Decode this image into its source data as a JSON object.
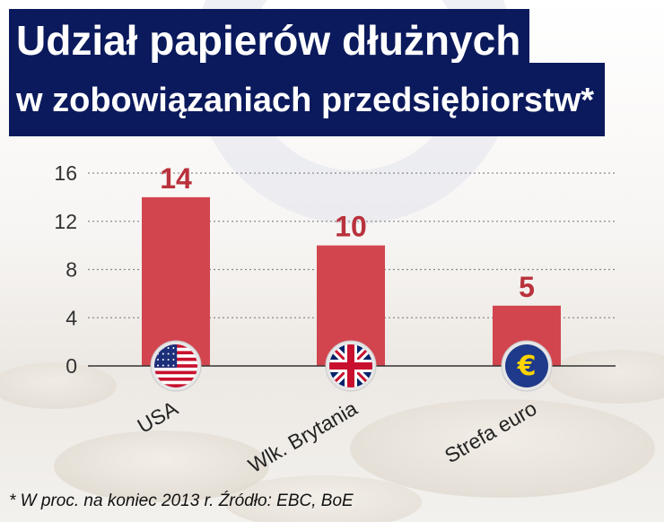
{
  "title": {
    "line1": "Udział papierów dłużnych",
    "line2": "w zobowiązaniach przedsiębiorstw*"
  },
  "footnote": "* W proc. na koniec 2013 r. Źródło: EBC, BoE",
  "colors": {
    "bar": "#d2454f",
    "value_label": "#b9323c",
    "title_bg": "#0b1a5c",
    "euro_badge": "#1f3a8a",
    "euro_symbol": "#ffd400"
  },
  "chart_data": {
    "type": "bar",
    "categories": [
      "USA",
      "Wlk. Brytania",
      "Strefa euro"
    ],
    "values": [
      14,
      10,
      5
    ],
    "value_labels": [
      "14",
      "10",
      "5"
    ],
    "icons": [
      "usa-flag-icon",
      "uk-flag-icon",
      "euro-symbol-icon"
    ],
    "euro_symbol": "€",
    "title": "Udział papierów dłużnych w zobowiązaniach przedsiębiorstw*",
    "xlabel": "",
    "ylabel": "",
    "ylim": [
      0,
      16
    ],
    "yticks": [
      "0",
      "4",
      "8",
      "12",
      "16"
    ],
    "grid": true
  }
}
